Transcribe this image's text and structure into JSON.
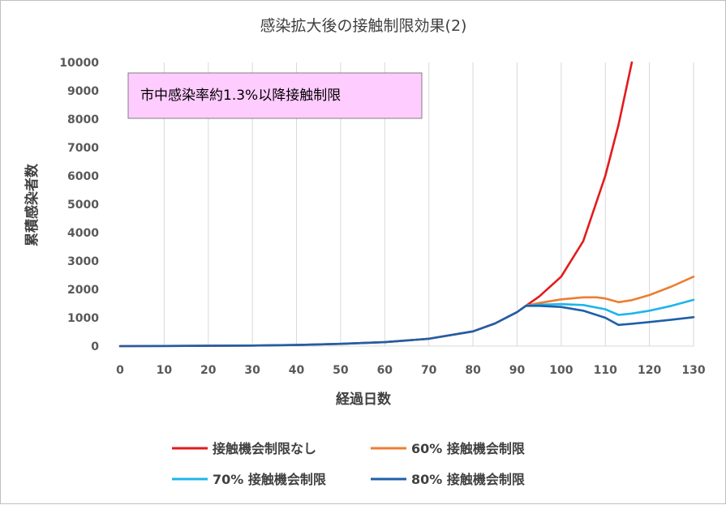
{
  "chart_data": {
    "type": "line",
    "title": "感染拡大後の接触制限効果(2)",
    "xlabel": "経過日数",
    "ylabel": "累積感染者数",
    "xlim": [
      0,
      130
    ],
    "ylim": [
      0,
      10000
    ],
    "x_ticks": [
      0,
      10,
      20,
      30,
      40,
      50,
      60,
      70,
      80,
      90,
      100,
      110,
      120,
      130
    ],
    "y_ticks": [
      0,
      1000,
      2000,
      3000,
      4000,
      5000,
      6000,
      7000,
      8000,
      9000,
      10000
    ],
    "grid": "vertical",
    "annotation": "市中感染率約1.3%以降接触制限",
    "legend_position": "bottom",
    "series": [
      {
        "name": "接触機会制限なし",
        "color": "#e31a1c",
        "x": [
          0,
          10,
          20,
          30,
          40,
          50,
          60,
          70,
          80,
          85,
          90,
          92,
          95,
          100,
          105,
          110,
          113,
          116
        ],
        "y": [
          0,
          5,
          10,
          20,
          40,
          80,
          140,
          260,
          520,
          800,
          1200,
          1420,
          1750,
          2450,
          3700,
          6000,
          7800,
          10000
        ]
      },
      {
        "name": "60% 接触機会制限",
        "color": "#ed7d31",
        "x": [
          92,
          95,
          100,
          105,
          108,
          110,
          113,
          116,
          120,
          125,
          130
        ],
        "y": [
          1420,
          1520,
          1650,
          1720,
          1720,
          1680,
          1550,
          1620,
          1800,
          2100,
          2450
        ]
      },
      {
        "name": "70% 接触機会制限",
        "color": "#1fb5ea",
        "x": [
          92,
          95,
          100,
          105,
          110,
          113,
          116,
          120,
          125,
          130
        ],
        "y": [
          1420,
          1460,
          1480,
          1450,
          1300,
          1100,
          1150,
          1250,
          1420,
          1630
        ]
      },
      {
        "name": "80% 接触機会制限",
        "color": "#1f5fa8",
        "x": [
          0,
          10,
          20,
          30,
          40,
          50,
          60,
          70,
          80,
          85,
          90,
          92,
          95,
          100,
          105,
          110,
          113,
          116,
          120,
          125,
          130
        ],
        "y": [
          0,
          5,
          10,
          20,
          40,
          80,
          140,
          260,
          520,
          800,
          1200,
          1420,
          1420,
          1380,
          1250,
          1000,
          750,
          790,
          850,
          930,
          1020
        ]
      }
    ]
  }
}
